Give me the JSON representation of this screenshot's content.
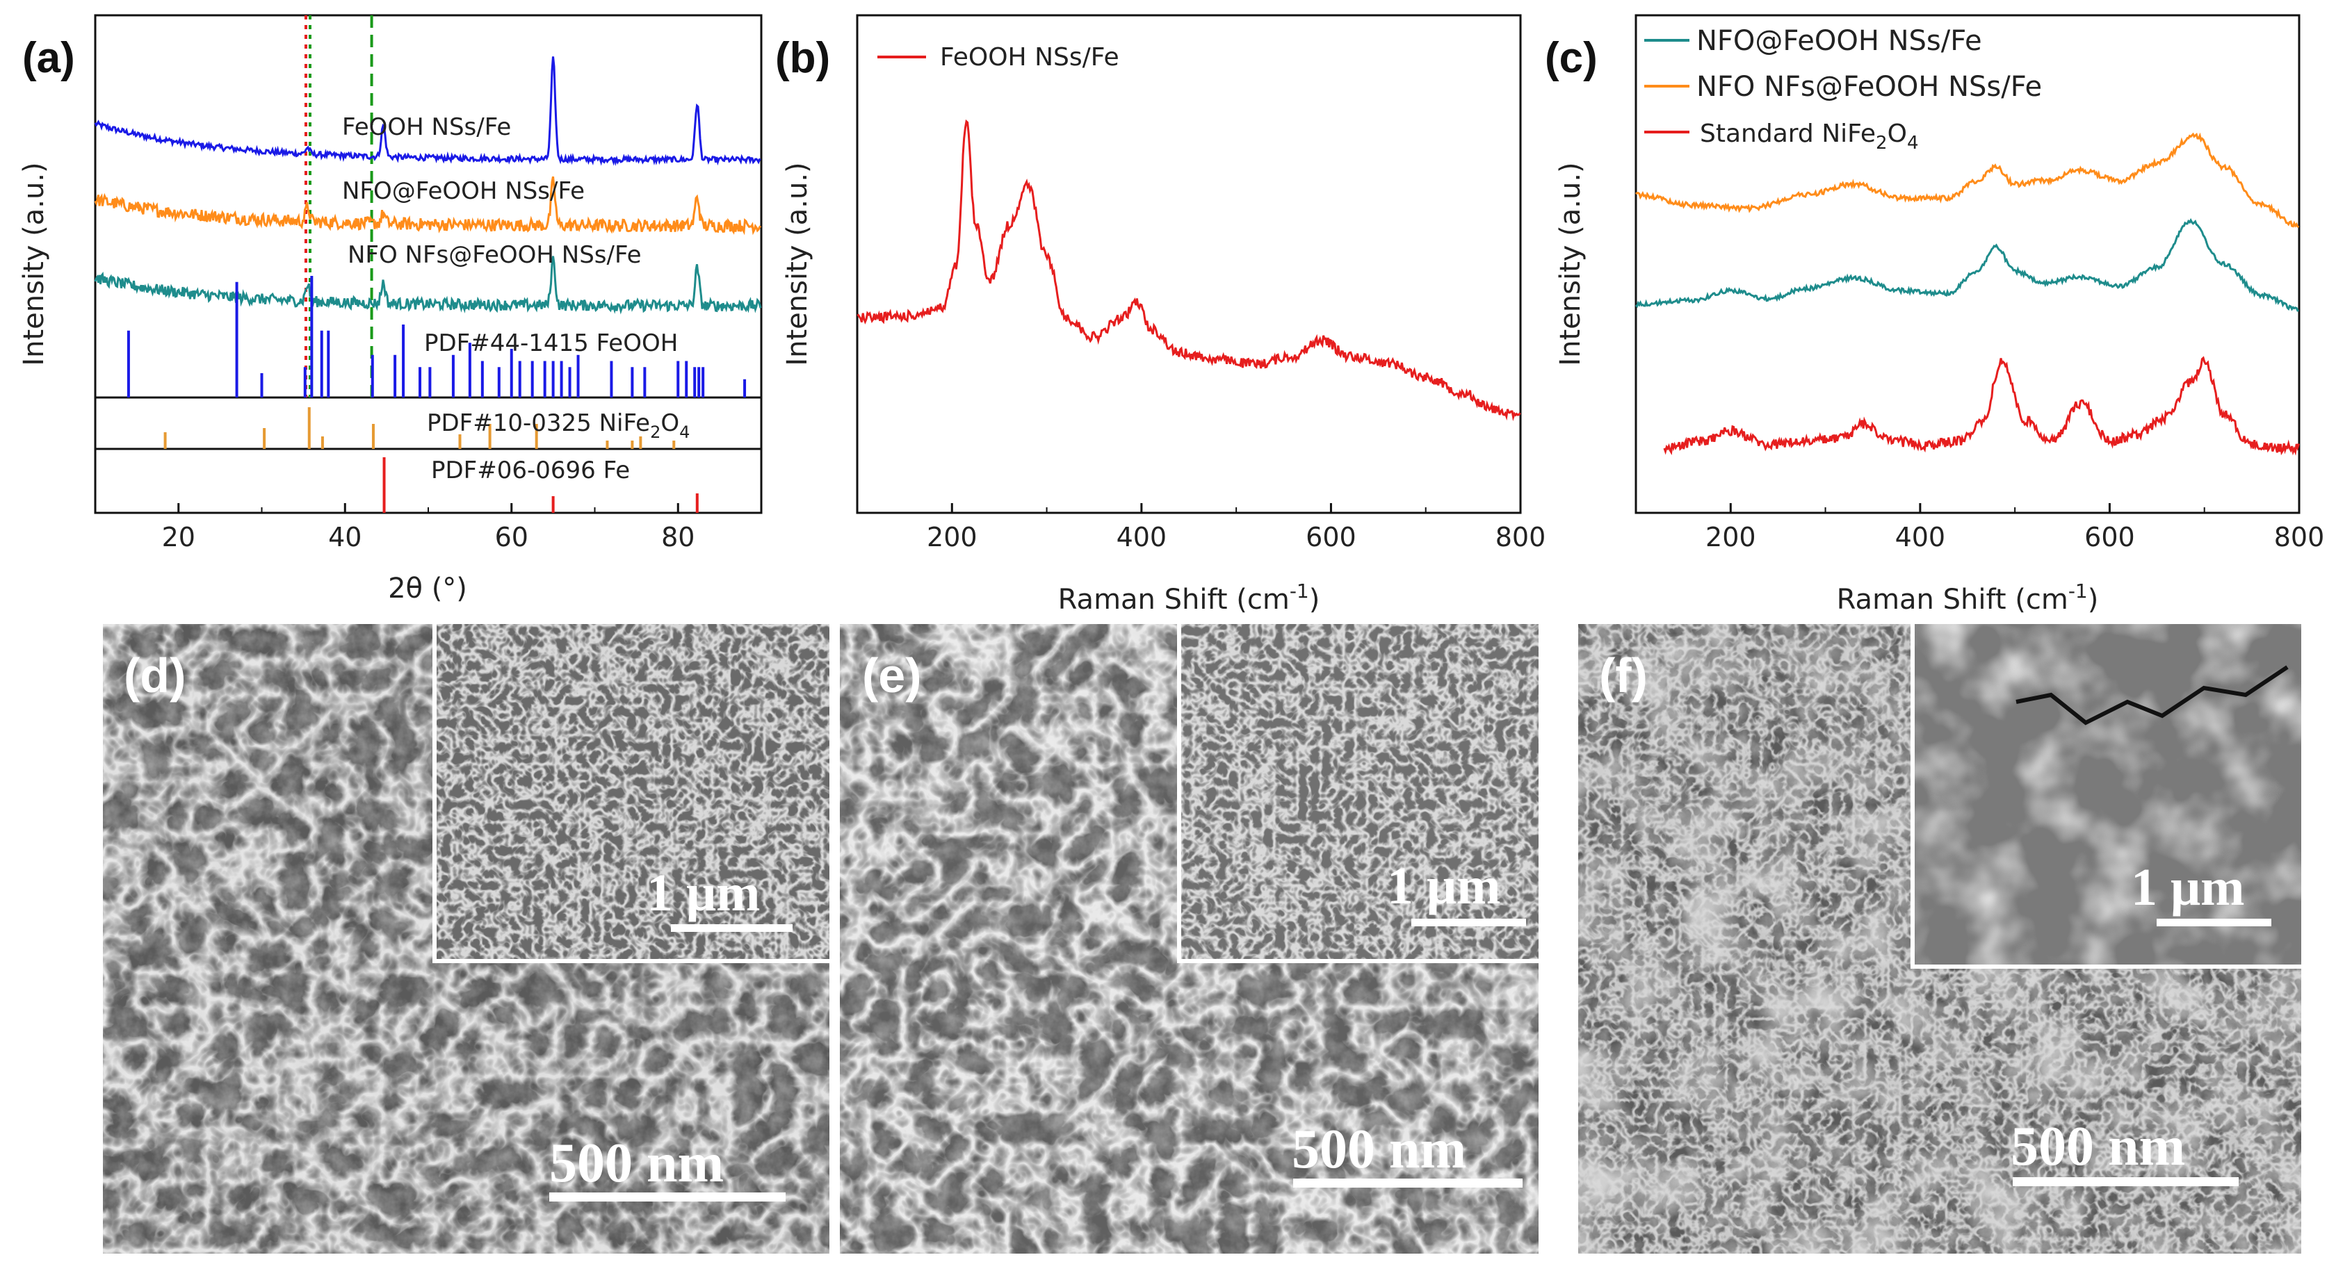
{
  "chart_data": [
    {
      "id": "a",
      "type": "line",
      "panel_label": "(a)",
      "xlabel": "2θ (°)",
      "ylabel": "Intensity (a.u.)",
      "xlim": [
        10,
        90
      ],
      "x_ticks": [
        "20",
        "40",
        "60",
        "80"
      ],
      "x_tick_values": [
        20,
        40,
        60,
        80
      ],
      "series": [
        {
          "name": "FeOOH NSs/Fe",
          "color": "#1a1ae6",
          "peaks": [
            35.5,
            44.6,
            65.0,
            82.3
          ],
          "peak_heights": [
            0.1,
            0.5,
            1.6,
            0.9
          ]
        },
        {
          "name": "NFO@FeOOH NSs/Fe",
          "color": "#ff8c1a",
          "peaks": [
            35.5,
            44.6,
            65.0,
            82.3
          ],
          "peak_heights": [
            0.3,
            0.2,
            0.9,
            0.6
          ]
        },
        {
          "name": "NFO NFs@FeOOH NSs/Fe",
          "color": "#1e8c8c",
          "peaks": [
            35.5,
            44.6,
            65.0,
            82.3
          ],
          "peak_heights": [
            0.4,
            0.5,
            1.1,
            0.9
          ]
        }
      ],
      "reference_lines": [
        {
          "x": 35.3,
          "color": "#e61e1e",
          "style": "dotted"
        },
        {
          "x": 35.8,
          "color": "#1a9a1a",
          "style": "dotted"
        },
        {
          "x": 43.2,
          "color": "#1a9a1a",
          "style": "dashed"
        }
      ],
      "reference_patterns": [
        {
          "name": "PDF#44-1415 FeOOH",
          "color": "#1a1ae6",
          "peaks": [
            14.0,
            27.0,
            30.0,
            35.2,
            36.0,
            37.2,
            38.0,
            43.3,
            46.0,
            47.0,
            49.0,
            50.2,
            53.0,
            55.0,
            56.5,
            58.5,
            60.0,
            61.0,
            62.5,
            64.0,
            65.0,
            66.0,
            67.0,
            68.0,
            72.0,
            74.5,
            76.0,
            80.0,
            81.0,
            82.0,
            82.5,
            83.0,
            88.0
          ],
          "heights": [
            0.55,
            0.95,
            0.2,
            0.25,
            1.0,
            0.55,
            0.55,
            0.35,
            0.35,
            0.6,
            0.25,
            0.25,
            0.35,
            0.45,
            0.3,
            0.25,
            0.4,
            0.3,
            0.3,
            0.3,
            0.3,
            0.3,
            0.25,
            0.35,
            0.3,
            0.25,
            0.25,
            0.3,
            0.3,
            0.25,
            0.25,
            0.25,
            0.15
          ]
        },
        {
          "name": "PDF#10-0325 NiFe2O4",
          "color": "#e69a33",
          "peaks": [
            18.4,
            30.3,
            35.7,
            37.3,
            43.4,
            53.8,
            57.4,
            63.0,
            71.5,
            74.5,
            75.5,
            79.5
          ],
          "heights": [
            0.4,
            0.5,
            1.0,
            0.3,
            0.6,
            0.35,
            0.6,
            0.6,
            0.2,
            0.2,
            0.3,
            0.2
          ]
        },
        {
          "name": "PDF#06-0696 Fe",
          "color": "#e61e1e",
          "peaks": [
            44.7,
            65.0,
            82.3
          ],
          "heights": [
            1.0,
            0.3,
            0.35
          ]
        }
      ]
    },
    {
      "id": "b",
      "type": "line",
      "panel_label": "(b)",
      "xlabel": "Raman Shift (cm",
      "xlabel_sup": "-1",
      "xlabel_end": ")",
      "ylabel": "Intensity (a.u.)",
      "xlim": [
        100,
        800
      ],
      "x_ticks": [
        "200",
        "400",
        "600",
        "800"
      ],
      "x_tick_values": [
        200,
        400,
        600,
        800
      ],
      "series": [
        {
          "name": "FeOOH NSs/Fe",
          "color": "#e61e1e",
          "x": [
            100,
            150,
            190,
            205,
            215,
            225,
            240,
            260,
            280,
            300,
            320,
            350,
            380,
            395,
            410,
            440,
            480,
            520,
            560,
            590,
            620,
            660,
            700,
            740,
            770,
            800
          ],
          "y": [
            0.62,
            0.63,
            0.68,
            0.95,
            1.85,
            1.2,
            0.85,
            1.2,
            1.45,
            1.0,
            0.62,
            0.5,
            0.62,
            0.72,
            0.55,
            0.4,
            0.36,
            0.33,
            0.38,
            0.48,
            0.38,
            0.34,
            0.25,
            0.15,
            0.05,
            0.0
          ]
        }
      ]
    },
    {
      "id": "c",
      "type": "line",
      "panel_label": "(c)",
      "xlabel": "Raman Shift (cm",
      "xlabel_sup": "-1",
      "xlabel_end": ")",
      "ylabel": "Intensity (a.u.)",
      "xlim": [
        100,
        800
      ],
      "x_ticks": [
        "200",
        "400",
        "600",
        "800"
      ],
      "x_tick_values": [
        200,
        400,
        600,
        800
      ],
      "series": [
        {
          "name": "NFO@FeOOH NSs/Fe",
          "color": "#1e8c8c",
          "x": [
            100,
            160,
            200,
            240,
            280,
            330,
            380,
            430,
            460,
            480,
            500,
            530,
            570,
            610,
            650,
            685,
            720,
            760,
            800
          ],
          "y": [
            0.62,
            0.68,
            0.82,
            0.7,
            0.85,
            1.0,
            0.82,
            0.78,
            1.1,
            1.45,
            1.1,
            0.92,
            1.02,
            0.88,
            1.15,
            1.82,
            1.2,
            0.75,
            0.55
          ]
        },
        {
          "name": "NFO NFs@FeOOH NSs/Fe",
          "color": "#ff8c1a",
          "x": [
            100,
            160,
            220,
            280,
            330,
            380,
            430,
            460,
            480,
            500,
            530,
            570,
            610,
            650,
            690,
            720,
            760,
            800
          ],
          "y": [
            2.2,
            2.05,
            2.0,
            2.2,
            2.35,
            2.15,
            2.15,
            2.4,
            2.6,
            2.35,
            2.4,
            2.55,
            2.4,
            2.65,
            3.05,
            2.6,
            2.05,
            1.75
          ]
        },
        {
          "name": "Standard NiFe2O4",
          "color": "#e61e1e",
          "x": [
            130,
            170,
            200,
            240,
            280,
            320,
            340,
            370,
            410,
            440,
            465,
            487,
            510,
            540,
            570,
            600,
            630,
            660,
            685,
            700,
            720,
            750,
            780,
            800
          ],
          "y": [
            -1.45,
            -1.35,
            -1.2,
            -1.4,
            -1.35,
            -1.3,
            -1.1,
            -1.35,
            -1.4,
            -1.35,
            -1.1,
            -0.2,
            -1.05,
            -1.35,
            -0.8,
            -1.35,
            -1.25,
            -1.0,
            -0.5,
            -0.2,
            -0.95,
            -1.4,
            -1.45,
            -1.45
          ]
        }
      ],
      "legend": [
        {
          "text": "NFO@FeOOH NSs/Fe",
          "color": "#1e8c8c"
        },
        {
          "text": "NFO NFs@FeOOH NSs/Fe",
          "color": "#ff8c1a"
        },
        {
          "text": "Standard NiFe",
          "sub1": "2",
          "mid": "O",
          "sub2": "4",
          "color": "#e61e1e"
        }
      ]
    }
  ],
  "sem_panels": [
    {
      "label": "(d)",
      "scale_main": "500 nm",
      "scale_inset": "1 μm"
    },
    {
      "label": "(e)",
      "scale_main": "500 nm",
      "scale_inset": "1 μm"
    },
    {
      "label": "(f)",
      "scale_main": "500 nm",
      "scale_inset": "1 μm"
    }
  ],
  "colors": {
    "blue": "#1a1ae6",
    "orange": "#ff8c1a",
    "teal": "#1e8c8c",
    "red": "#e61e1e",
    "green": "#1a9a1a"
  }
}
